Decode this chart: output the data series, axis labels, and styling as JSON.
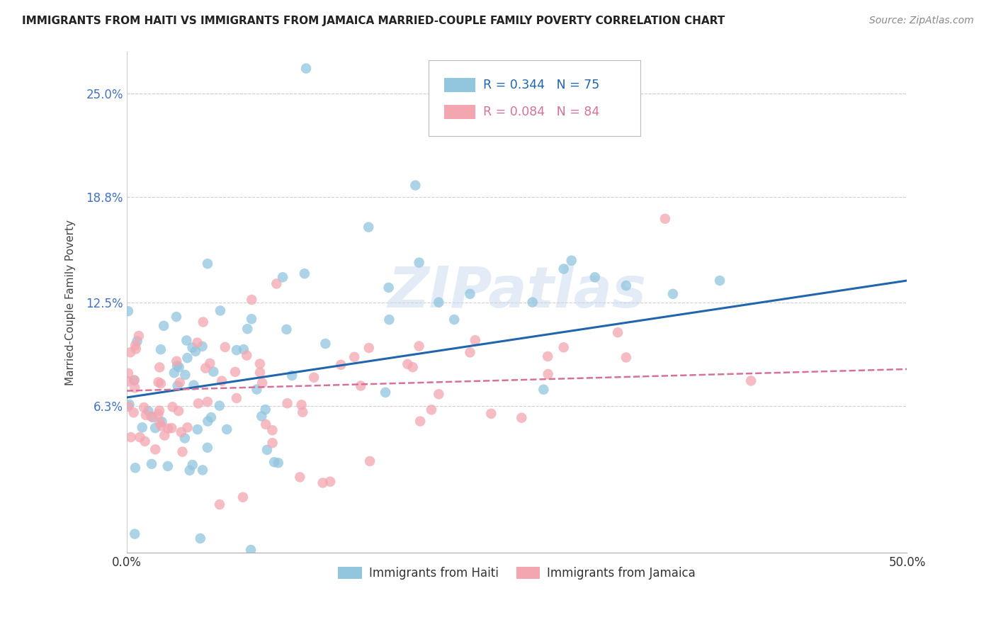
{
  "title": "IMMIGRANTS FROM HAITI VS IMMIGRANTS FROM JAMAICA MARRIED-COUPLE FAMILY POVERTY CORRELATION CHART",
  "source": "Source: ZipAtlas.com",
  "ylabel": "Married-Couple Family Poverty",
  "ytick_labels": [
    "25.0%",
    "18.8%",
    "12.5%",
    "6.3%"
  ],
  "ytick_values": [
    0.25,
    0.188,
    0.125,
    0.063
  ],
  "xlim": [
    0.0,
    0.5
  ],
  "ylim": [
    -0.025,
    0.275
  ],
  "haiti_color": "#92c5de",
  "jamaica_color": "#f4a6b0",
  "haiti_line_color": "#2166ac",
  "jamaica_line_color": "#d6729a",
  "haiti_R": 0.344,
  "haiti_N": 75,
  "jamaica_R": 0.084,
  "jamaica_N": 84,
  "watermark": "ZIPatlas",
  "legend_entries": [
    "Immigrants from Haiti",
    "Immigrants from Jamaica"
  ],
  "haiti_line_start": 0.068,
  "haiti_line_end": 0.138,
  "jamaica_line_start": 0.072,
  "jamaica_line_end": 0.085
}
